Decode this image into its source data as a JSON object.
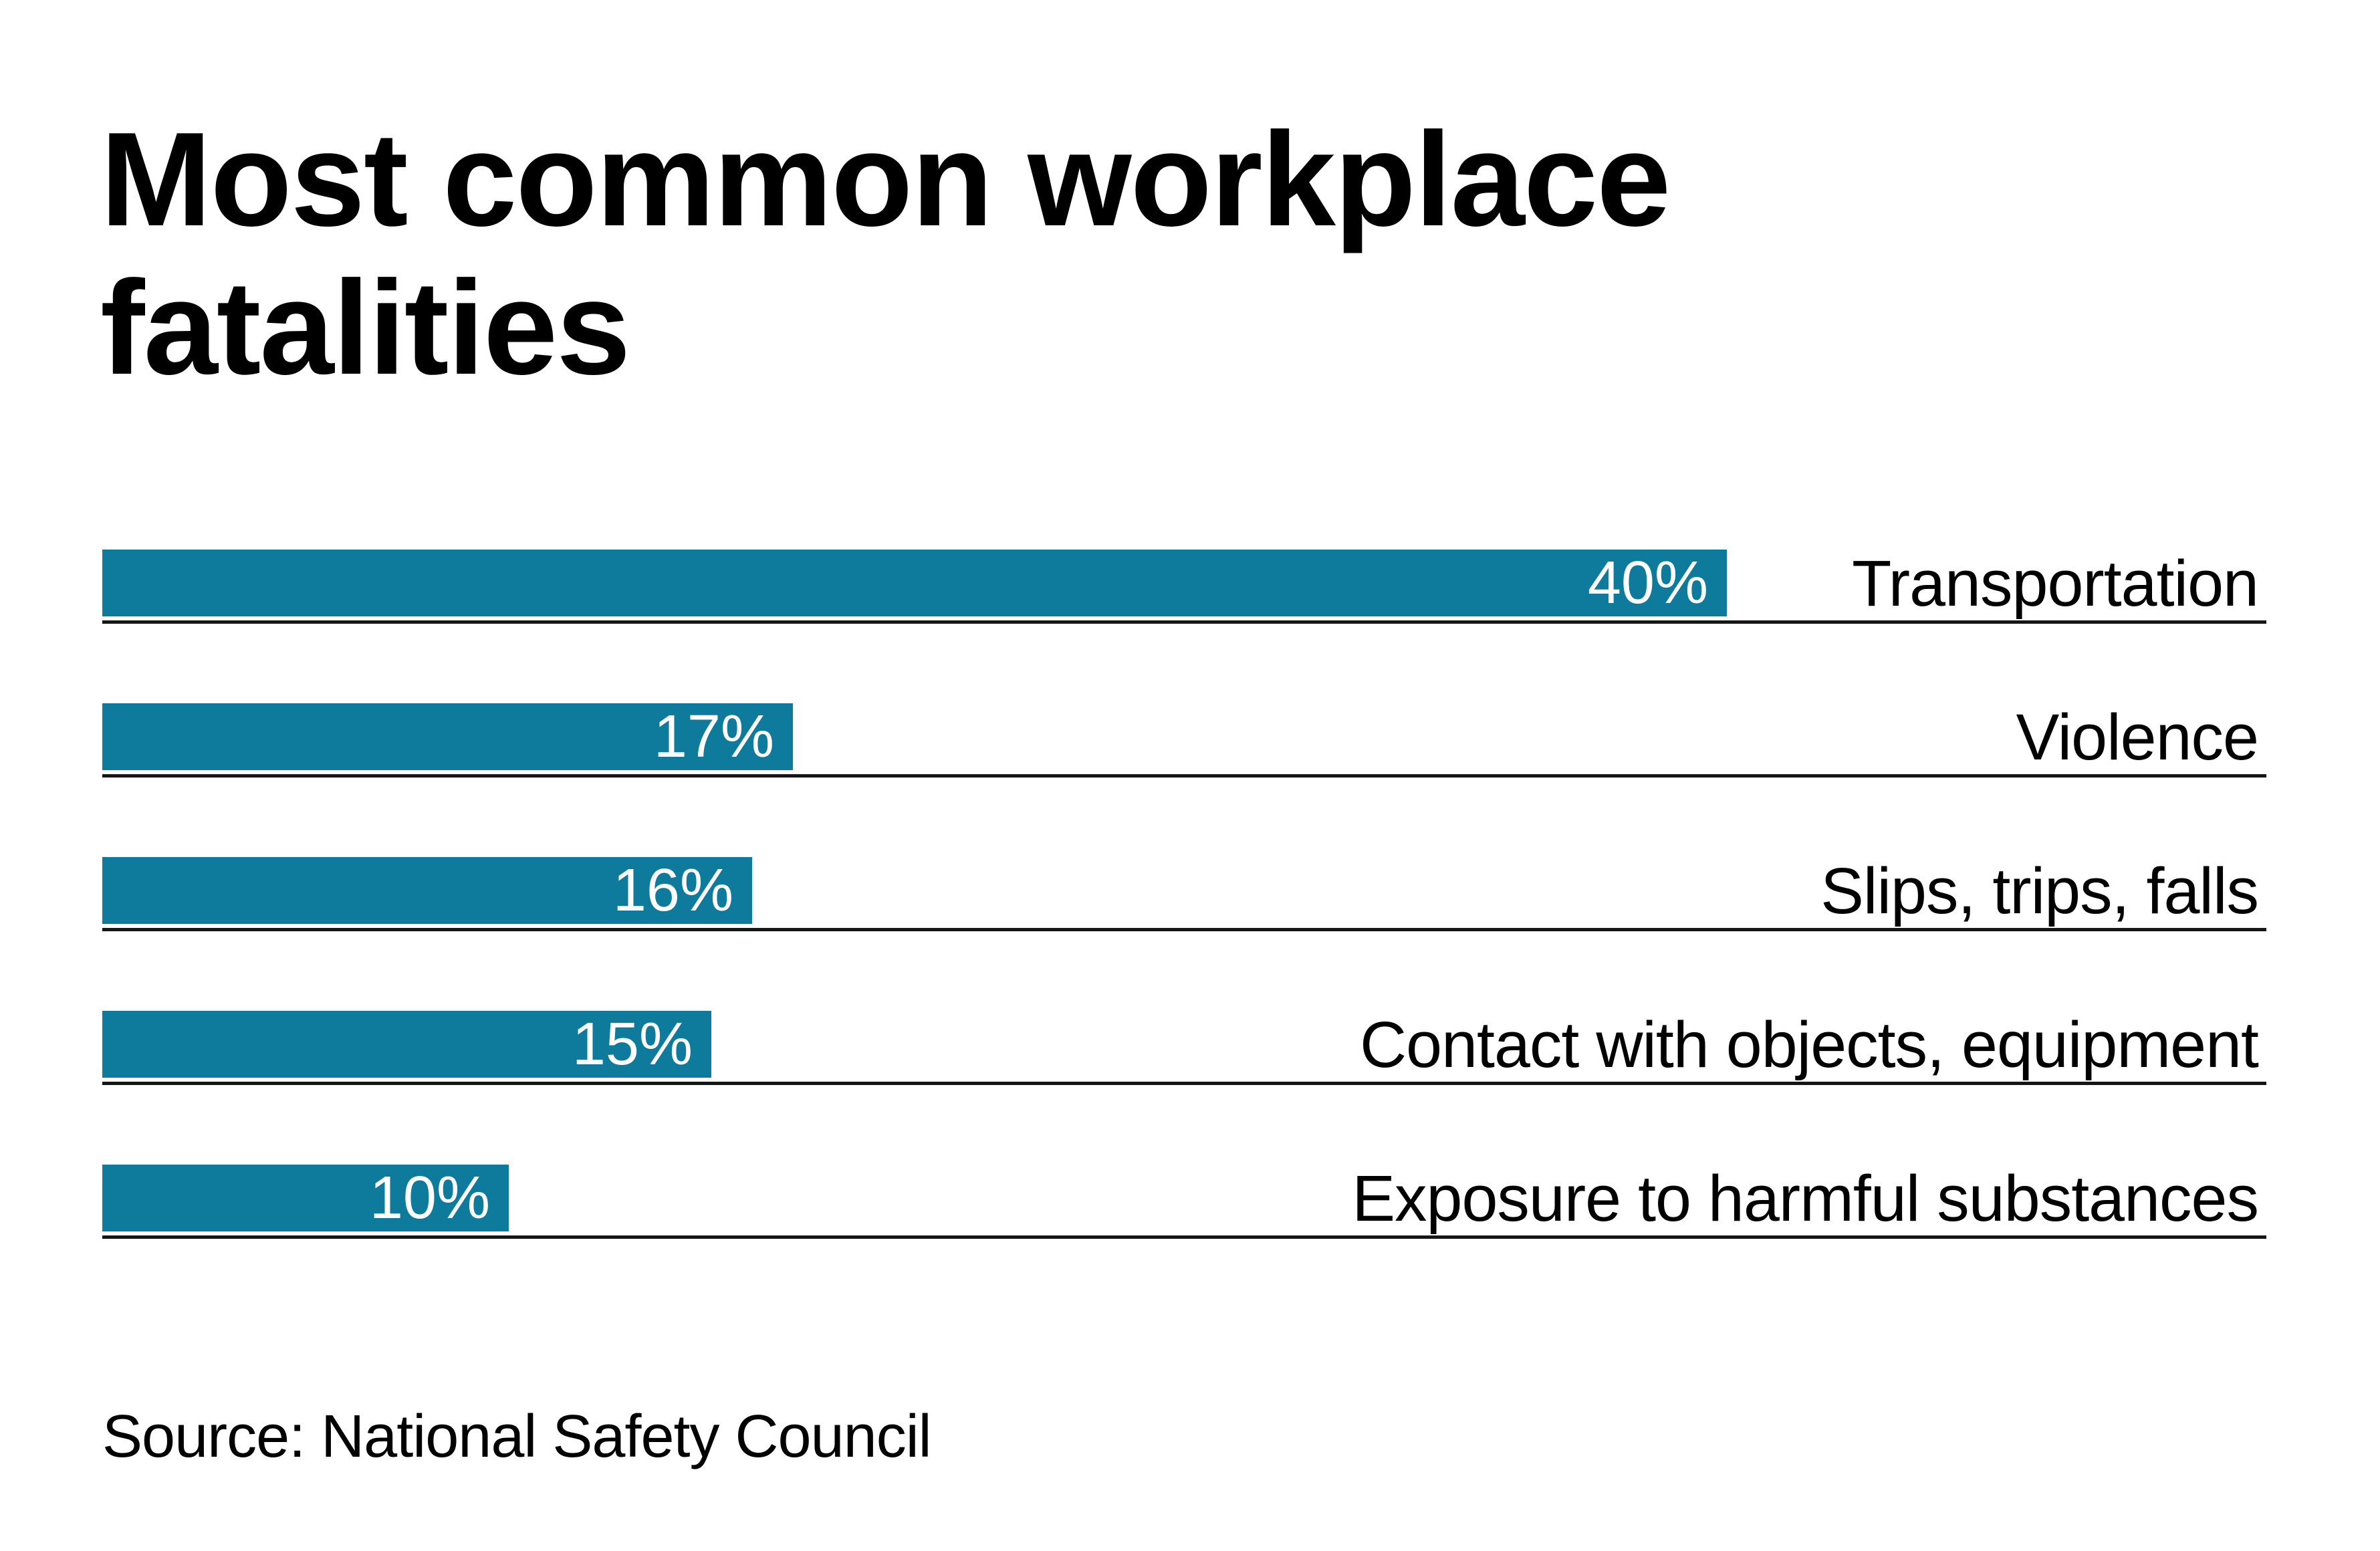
{
  "title": {
    "line1": "Most common workplace",
    "line2": "fatalities"
  },
  "source_note": "Source: National Safety Council",
  "colors": {
    "bar": "#0e7b9c",
    "rule": "#161616",
    "value_text": "#ffffff",
    "text": "#000000",
    "background": "#ffffff"
  },
  "chart_data": {
    "type": "bar",
    "orientation": "horizontal",
    "title": "Most common workplace fatalities",
    "categories": [
      "Transportation",
      "Violence",
      "Slips, trips, falls",
      "Contact with objects, equipment",
      "Exposure to harmful substances"
    ],
    "values": [
      40,
      17,
      16,
      15,
      10
    ],
    "value_labels": [
      "40%",
      "17%",
      "16%",
      "15%",
      "10%"
    ],
    "unit": "percent",
    "xlim": [
      0,
      53.3
    ],
    "grid": "none",
    "legend": "none",
    "value_label_position": "inside-end",
    "category_label_position": "right-aligned-outside",
    "source": "Source: National Safety Council"
  }
}
